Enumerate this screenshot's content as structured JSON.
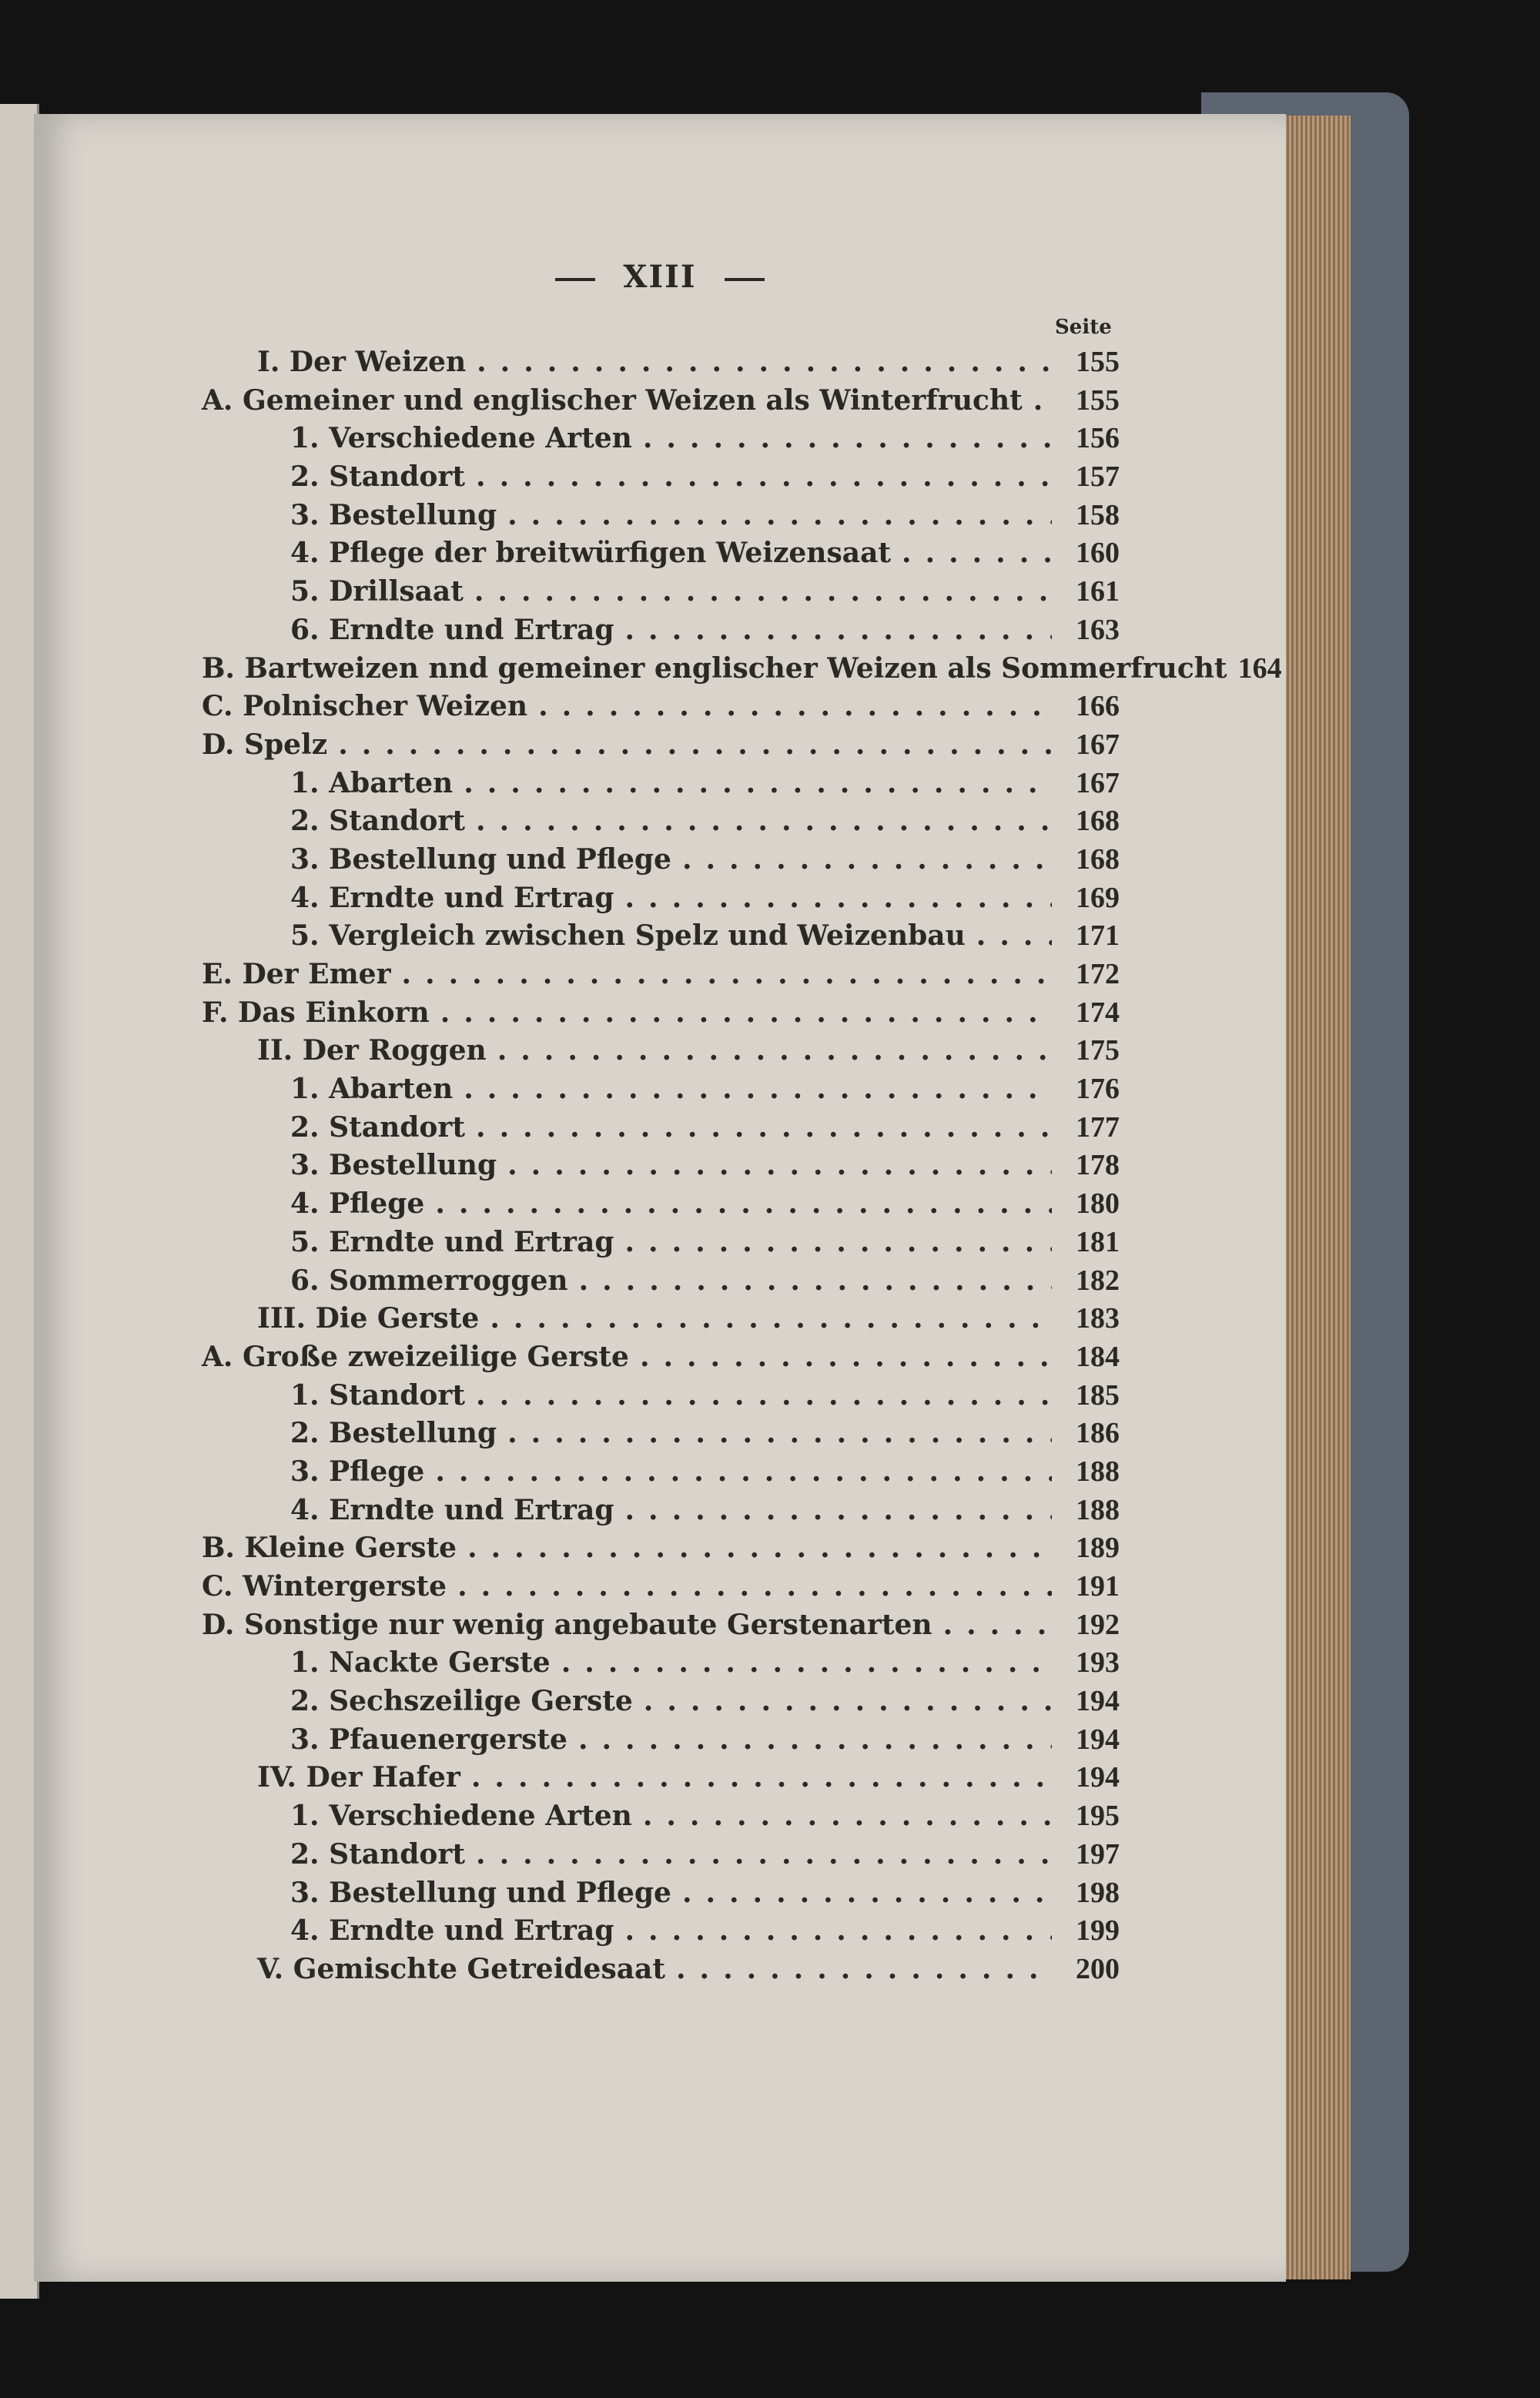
{
  "page": {
    "header": "XIII",
    "column_label": "Seite",
    "entries": [
      {
        "level": "chapter",
        "label": "I. Der Weizen",
        "page": "155"
      },
      {
        "level": "section",
        "label": "A. Gemeiner und englischer Weizen als Winterfrucht",
        "page": "155"
      },
      {
        "level": "sub",
        "label": "1. Verschiedene Arten",
        "page": "156"
      },
      {
        "level": "sub",
        "label": "2. Standort",
        "page": "157"
      },
      {
        "level": "sub",
        "label": "3. Bestellung",
        "page": "158"
      },
      {
        "level": "sub",
        "label": "4. Pflege der breitwürfigen Weizensaat",
        "page": "160"
      },
      {
        "level": "sub",
        "label": "5. Drillsaat",
        "page": "161"
      },
      {
        "level": "sub",
        "label": "6. Erndte und Ertrag",
        "page": "163"
      },
      {
        "level": "section",
        "label": "B. Bartweizen nnd gemeiner englischer Weizen als Sommerfrucht",
        "page": "164"
      },
      {
        "level": "section",
        "label": "C. Polnischer Weizen",
        "page": "166"
      },
      {
        "level": "section",
        "label": "D. Spelz",
        "page": "167"
      },
      {
        "level": "sub",
        "label": "1. Abarten",
        "page": "167"
      },
      {
        "level": "sub",
        "label": "2. Standort",
        "page": "168"
      },
      {
        "level": "sub",
        "label": "3. Bestellung und Pflege",
        "page": "168"
      },
      {
        "level": "sub",
        "label": "4. Erndte und Ertrag",
        "page": "169"
      },
      {
        "level": "sub",
        "label": "5. Vergleich zwischen Spelz und Weizenbau",
        "page": "171"
      },
      {
        "level": "section",
        "label": "E. Der Emer",
        "page": "172"
      },
      {
        "level": "section",
        "label": "F. Das Einkorn",
        "page": "174"
      },
      {
        "level": "chapter",
        "label": "II. Der Roggen",
        "page": "175"
      },
      {
        "level": "sub",
        "label": "1. Abarten",
        "page": "176"
      },
      {
        "level": "sub",
        "label": "2. Standort",
        "page": "177"
      },
      {
        "level": "sub",
        "label": "3. Bestellung",
        "page": "178"
      },
      {
        "level": "sub",
        "label": "4. Pflege",
        "page": "180"
      },
      {
        "level": "sub",
        "label": "5. Erndte und Ertrag",
        "page": "181"
      },
      {
        "level": "sub",
        "label": "6. Sommerroggen",
        "page": "182"
      },
      {
        "level": "chapter",
        "label": "III. Die Gerste",
        "page": "183"
      },
      {
        "level": "section",
        "label": "A. Große zweizeilige Gerste",
        "page": "184"
      },
      {
        "level": "sub",
        "label": "1. Standort",
        "page": "185"
      },
      {
        "level": "sub",
        "label": "2. Bestellung",
        "page": "186"
      },
      {
        "level": "sub",
        "label": "3. Pflege",
        "page": "188"
      },
      {
        "level": "sub",
        "label": "4. Erndte und Ertrag",
        "page": "188"
      },
      {
        "level": "section",
        "label": "B. Kleine Gerste",
        "page": "189"
      },
      {
        "level": "section",
        "label": "C. Wintergerste",
        "page": "191"
      },
      {
        "level": "section",
        "label": "D. Sonstige nur wenig angebaute Gerstenarten",
        "page": "192"
      },
      {
        "level": "sub",
        "label": "1. Nackte Gerste",
        "page": "193"
      },
      {
        "level": "sub",
        "label": "2. Sechszeilige Gerste",
        "page": "194"
      },
      {
        "level": "sub",
        "label": "3. Pfauenergerste",
        "page": "194"
      },
      {
        "level": "chapter",
        "label": "IV. Der Hafer",
        "page": "194"
      },
      {
        "level": "sub",
        "label": "1. Verschiedene Arten",
        "page": "195"
      },
      {
        "level": "sub",
        "label": "2. Standort",
        "page": "197"
      },
      {
        "level": "sub",
        "label": "3. Bestellung und Pflege",
        "page": "198"
      },
      {
        "level": "sub",
        "label": "4. Erndte und Ertrag",
        "page": "199"
      },
      {
        "level": "chapter",
        "label": "V. Gemischte Getreidesaat",
        "page": "200"
      }
    ]
  }
}
